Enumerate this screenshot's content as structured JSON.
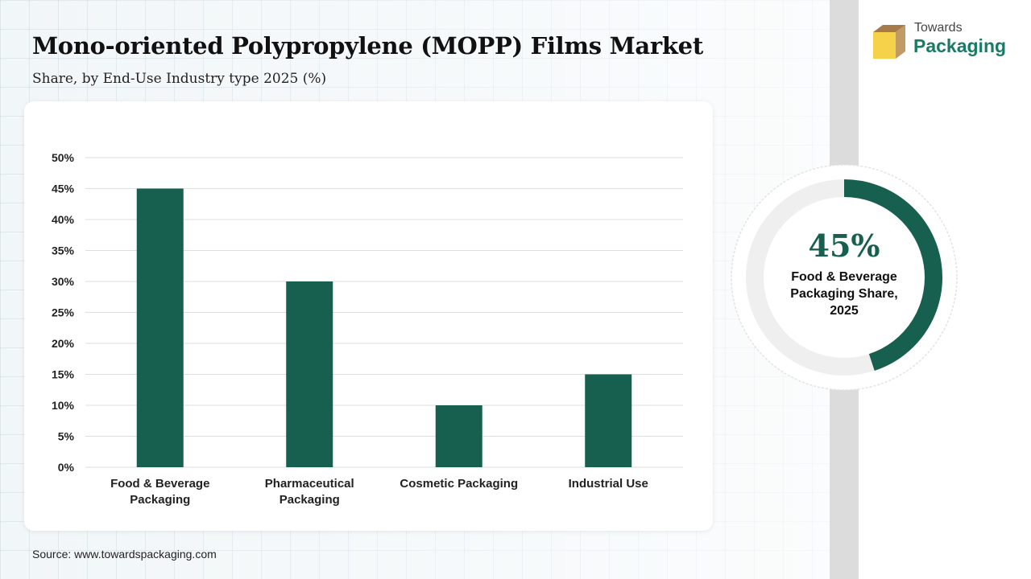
{
  "header": {
    "title": "Mono-oriented Polypropylene (MOPP) Films Market",
    "subtitle": "Share, by End-Use Industry type 2025 (%)"
  },
  "logo": {
    "line1": "Towards",
    "line2": "Packaging"
  },
  "colors": {
    "bar": "#17604f",
    "donut_track": "#efefef",
    "logo_green": "#1a7a65",
    "logo_yellow": "#f5d24a",
    "logo_brown": "#a77b47"
  },
  "chart_data": {
    "type": "bar",
    "categories": [
      [
        "Food & Beverage",
        "Packaging"
      ],
      [
        "Pharmaceutical",
        "Packaging"
      ],
      [
        "Cosmetic Packaging"
      ],
      [
        "Industrial Use"
      ]
    ],
    "values": [
      45,
      30,
      10,
      15
    ],
    "ylim": [
      0,
      50
    ],
    "yticks": [
      0,
      5,
      10,
      15,
      20,
      25,
      30,
      35,
      40,
      45,
      50
    ],
    "ytick_suffix": "%",
    "grid": true
  },
  "highlight": {
    "value_text": "45%",
    "fraction": 0.45,
    "label_lines": [
      "Food & Beverage",
      "Packaging  Share,",
      "2025"
    ]
  },
  "footer": {
    "source": "Source: www.towardspackaging.com"
  }
}
